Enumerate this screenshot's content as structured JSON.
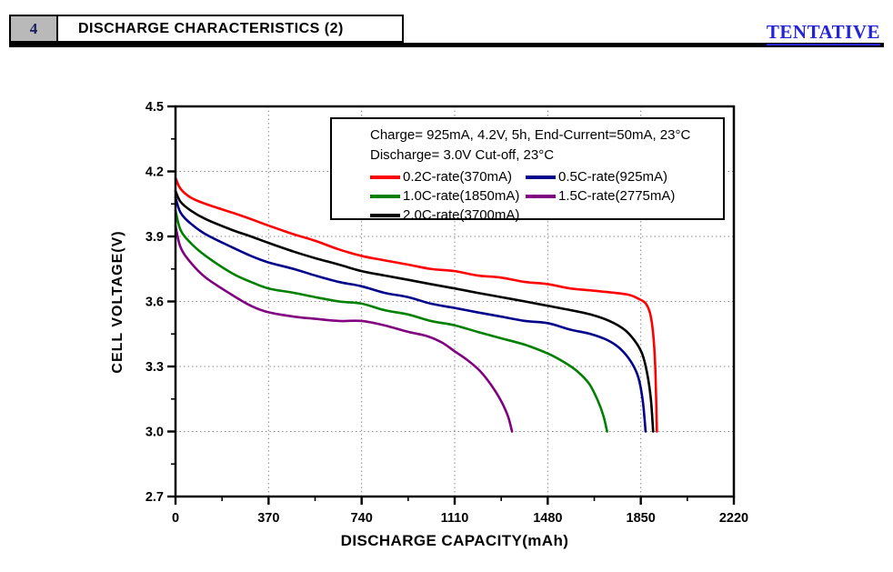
{
  "header": {
    "section_number": "4",
    "section_title": "DISCHARGE CHARACTERISTICS (2)",
    "watermark": "TENTATIVE",
    "watermark_color": "#2323d7"
  },
  "chart_data": {
    "type": "line",
    "xlabel": "DISCHARGE CAPACITY(mAh)",
    "ylabel": "CELL VOLTAGE(V)",
    "xlim": [
      0,
      2220
    ],
    "ylim": [
      2.7,
      4.5
    ],
    "x_ticks": [
      0,
      370,
      740,
      1110,
      1480,
      1850,
      2220
    ],
    "y_ticks": [
      2.7,
      3.0,
      3.3,
      3.6,
      3.9,
      4.2,
      4.5
    ],
    "x_minor_ticks": [
      185,
      555,
      925,
      1295,
      1665,
      2035
    ],
    "y_minor_ticks": [
      2.85,
      3.15,
      3.45,
      3.75,
      4.05,
      4.35
    ],
    "grid": true,
    "grid_color": "#8a8a8a",
    "legend": {
      "position": "top-right-inside",
      "header_lines": [
        "Charge= 925mA, 4.2V, 5h, End-Current=50mA, 23°C",
        "Discharge= 3.0V Cut-off, 23°C"
      ]
    },
    "series": [
      {
        "name": "0.2C-rate(370mA)",
        "color": "#ff0000",
        "points": [
          [
            0,
            4.17
          ],
          [
            20,
            4.12
          ],
          [
            60,
            4.08
          ],
          [
            120,
            4.05
          ],
          [
            225,
            4.01
          ],
          [
            300,
            3.98
          ],
          [
            370,
            3.95
          ],
          [
            470,
            3.91
          ],
          [
            555,
            3.88
          ],
          [
            650,
            3.84
          ],
          [
            740,
            3.81
          ],
          [
            830,
            3.79
          ],
          [
            925,
            3.77
          ],
          [
            1015,
            3.75
          ],
          [
            1110,
            3.74
          ],
          [
            1200,
            3.72
          ],
          [
            1295,
            3.71
          ],
          [
            1390,
            3.69
          ],
          [
            1480,
            3.68
          ],
          [
            1570,
            3.66
          ],
          [
            1660,
            3.65
          ],
          [
            1745,
            3.64
          ],
          [
            1805,
            3.63
          ],
          [
            1845,
            3.61
          ],
          [
            1870,
            3.59
          ],
          [
            1888,
            3.54
          ],
          [
            1900,
            3.44
          ],
          [
            1908,
            3.28
          ],
          [
            1914,
            3.0
          ]
        ]
      },
      {
        "name": "0.5C-rate(925mA)",
        "color": "#00008b",
        "points": [
          [
            0,
            4.08
          ],
          [
            20,
            4.01
          ],
          [
            60,
            3.96
          ],
          [
            120,
            3.91
          ],
          [
            225,
            3.85
          ],
          [
            300,
            3.81
          ],
          [
            370,
            3.78
          ],
          [
            470,
            3.75
          ],
          [
            555,
            3.72
          ],
          [
            650,
            3.69
          ],
          [
            740,
            3.67
          ],
          [
            830,
            3.64
          ],
          [
            925,
            3.62
          ],
          [
            1015,
            3.59
          ],
          [
            1110,
            3.57
          ],
          [
            1200,
            3.55
          ],
          [
            1295,
            3.53
          ],
          [
            1390,
            3.51
          ],
          [
            1480,
            3.5
          ],
          [
            1570,
            3.47
          ],
          [
            1650,
            3.45
          ],
          [
            1720,
            3.42
          ],
          [
            1770,
            3.38
          ],
          [
            1812,
            3.32
          ],
          [
            1840,
            3.25
          ],
          [
            1858,
            3.14
          ],
          [
            1869,
            3.0
          ]
        ]
      },
      {
        "name": "1.0C-rate(1850mA)",
        "color": "#008000",
        "points": [
          [
            0,
            4.02
          ],
          [
            20,
            3.93
          ],
          [
            60,
            3.87
          ],
          [
            120,
            3.81
          ],
          [
            225,
            3.73
          ],
          [
            300,
            3.69
          ],
          [
            370,
            3.66
          ],
          [
            470,
            3.64
          ],
          [
            555,
            3.62
          ],
          [
            650,
            3.6
          ],
          [
            740,
            3.59
          ],
          [
            830,
            3.56
          ],
          [
            925,
            3.54
          ],
          [
            1015,
            3.51
          ],
          [
            1110,
            3.49
          ],
          [
            1200,
            3.46
          ],
          [
            1295,
            3.43
          ],
          [
            1390,
            3.4
          ],
          [
            1480,
            3.36
          ],
          [
            1545,
            3.32
          ],
          [
            1595,
            3.28
          ],
          [
            1645,
            3.22
          ],
          [
            1680,
            3.14
          ],
          [
            1702,
            3.07
          ],
          [
            1716,
            3.0
          ]
        ]
      },
      {
        "name": "1.5C-rate(2775mA)",
        "color": "#800080",
        "points": [
          [
            0,
            3.95
          ],
          [
            20,
            3.85
          ],
          [
            60,
            3.78
          ],
          [
            120,
            3.71
          ],
          [
            225,
            3.63
          ],
          [
            300,
            3.58
          ],
          [
            370,
            3.55
          ],
          [
            470,
            3.53
          ],
          [
            555,
            3.52
          ],
          [
            650,
            3.51
          ],
          [
            740,
            3.51
          ],
          [
            830,
            3.49
          ],
          [
            925,
            3.46
          ],
          [
            1000,
            3.44
          ],
          [
            1060,
            3.41
          ],
          [
            1110,
            3.37
          ],
          [
            1160,
            3.33
          ],
          [
            1210,
            3.28
          ],
          [
            1258,
            3.21
          ],
          [
            1295,
            3.14
          ],
          [
            1322,
            3.07
          ],
          [
            1338,
            3.0
          ]
        ]
      },
      {
        "name": "2.0C-rate(3700mA)",
        "color": "#000000",
        "points": [
          [
            0,
            4.11
          ],
          [
            20,
            4.06
          ],
          [
            60,
            4.02
          ],
          [
            120,
            3.98
          ],
          [
            225,
            3.93
          ],
          [
            300,
            3.9
          ],
          [
            370,
            3.87
          ],
          [
            470,
            3.83
          ],
          [
            555,
            3.8
          ],
          [
            650,
            3.77
          ],
          [
            740,
            3.74
          ],
          [
            830,
            3.72
          ],
          [
            925,
            3.7
          ],
          [
            1015,
            3.68
          ],
          [
            1110,
            3.66
          ],
          [
            1200,
            3.64
          ],
          [
            1295,
            3.62
          ],
          [
            1390,
            3.6
          ],
          [
            1480,
            3.58
          ],
          [
            1570,
            3.56
          ],
          [
            1650,
            3.54
          ],
          [
            1725,
            3.51
          ],
          [
            1785,
            3.47
          ],
          [
            1825,
            3.42
          ],
          [
            1855,
            3.36
          ],
          [
            1875,
            3.27
          ],
          [
            1890,
            3.15
          ],
          [
            1899,
            3.0
          ]
        ]
      }
    ]
  }
}
